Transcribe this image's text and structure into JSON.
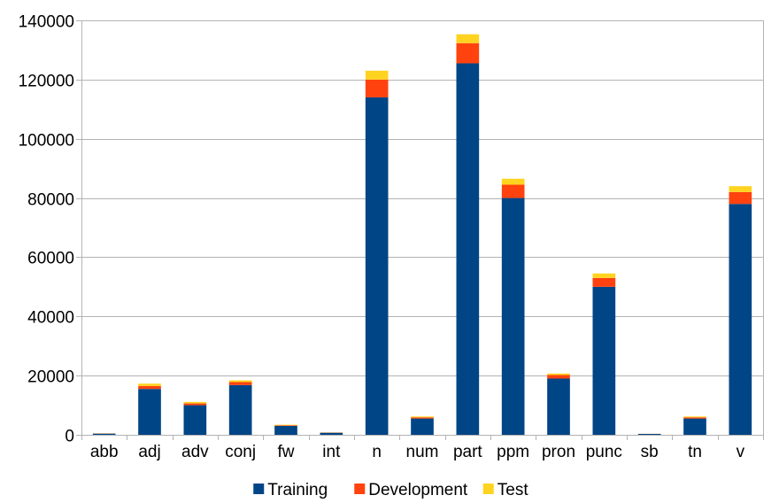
{
  "chart_data": {
    "type": "bar",
    "stacked": true,
    "title": "",
    "xlabel": "",
    "ylabel": "",
    "ylim": [
      0,
      140000
    ],
    "yticks": [
      0,
      20000,
      40000,
      60000,
      80000,
      100000,
      120000,
      140000
    ],
    "ytick_labels": [
      "0",
      "20000",
      "40000",
      "60000",
      "80000",
      "100000",
      "120000",
      "140000"
    ],
    "grid": true,
    "legend_position": "bottom",
    "categories": [
      "abb",
      "adj",
      "adv",
      "conj",
      "fw",
      "int",
      "n",
      "num",
      "part",
      "ppm",
      "pron",
      "punc",
      "sb",
      "tn",
      "v"
    ],
    "series": [
      {
        "name": "Training",
        "color": "#004586",
        "values": [
          400,
          15500,
          10000,
          16800,
          3000,
          700,
          114000,
          5500,
          125500,
          80000,
          19000,
          50000,
          300,
          5500,
          78000
        ]
      },
      {
        "name": "Development",
        "color": "#ff420e",
        "values": [
          50,
          1000,
          600,
          1000,
          200,
          50,
          6000,
          400,
          6800,
          4500,
          1200,
          3000,
          30,
          400,
          4000
        ]
      },
      {
        "name": "Test",
        "color": "#ffd320",
        "values": [
          50,
          800,
          500,
          600,
          200,
          50,
          3000,
          300,
          3000,
          2000,
          500,
          1500,
          20,
          300,
          2000
        ]
      }
    ]
  }
}
